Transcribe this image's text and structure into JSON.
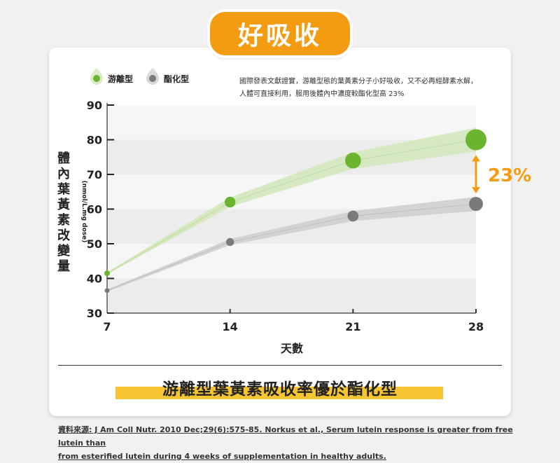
{
  "badge": "好吸收",
  "note": {
    "line1": "國際發表文獻證實，游離型態的葉黃素分子小好吸收，又不必再經酵素水解，",
    "line2": "人體可直接利用，服用後體內中濃度較酯化型高 23%"
  },
  "conclusion": "游離型葉黃素吸收率優於酯化型",
  "source": {
    "line1": "資料來源: J Am Coll Nutr. 2010 Dec;29(6):575-85. Norkus et al., Serum lutein response is greater from free lutein than",
    "line2": "from esterified lutein during 4 weeks of supplementation in healthy adults."
  },
  "colors": {
    "accent": "#f39c12",
    "free": "#6ab42f",
    "ester": "#7a7a7a",
    "free_band": "#d3e8bc",
    "ester_band": "#cfcfcf"
  },
  "chart_data": {
    "type": "line",
    "xlabel": "天數",
    "ylabel": "體內葉黃素改變量",
    "ylabel_unit": "(nmol/L.mg dose)",
    "x": [
      7,
      14,
      21,
      28
    ],
    "xticks": [
      "7",
      "14",
      "21",
      "28"
    ],
    "yticks": [
      "30",
      "40",
      "50",
      "60",
      "70",
      "80",
      "90"
    ],
    "ylim": [
      30,
      90
    ],
    "grid": true,
    "legend": "top-left",
    "series": [
      {
        "name": "游離型",
        "values": [
          41.5,
          62,
          74,
          80
        ]
      },
      {
        "name": "酯化型",
        "values": [
          36.5,
          50.5,
          58,
          61.5
        ]
      }
    ],
    "annotation": {
      "text": "23%",
      "x": 28,
      "from": 61.5,
      "to": 80
    }
  }
}
